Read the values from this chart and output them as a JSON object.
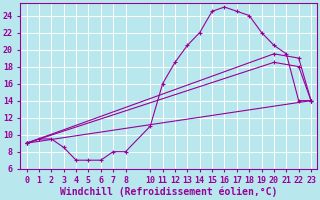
{
  "xlabel": "Windchill (Refroidissement éolien,°C)",
  "background_color": "#b8e8ee",
  "grid_color": "#ffffff",
  "line_color": "#990099",
  "xlim": [
    -0.5,
    23.5
  ],
  "ylim": [
    6,
    25.5
  ],
  "xticks": [
    0,
    1,
    2,
    3,
    4,
    5,
    6,
    7,
    8,
    10,
    11,
    12,
    13,
    14,
    15,
    16,
    17,
    18,
    19,
    20,
    21,
    22,
    23
  ],
  "yticks": [
    6,
    8,
    10,
    12,
    14,
    16,
    18,
    20,
    22,
    24
  ],
  "line1_x": [
    0,
    1,
    2,
    3,
    4,
    5,
    6,
    7,
    8,
    10,
    11,
    12,
    13,
    14,
    15,
    16,
    17,
    18,
    19,
    20,
    21,
    22,
    23
  ],
  "line1_y": [
    9,
    9.5,
    9.5,
    8.5,
    7,
    7,
    7,
    8,
    8,
    11,
    16,
    18.5,
    20.5,
    22,
    24.5,
    25,
    24.5,
    24,
    22,
    20.5,
    19.5,
    14,
    14
  ],
  "line2_x": [
    0,
    20,
    22,
    23
  ],
  "line2_y": [
    9,
    19.5,
    19,
    14
  ],
  "line3_x": [
    0,
    20,
    22,
    23
  ],
  "line3_y": [
    9,
    18.5,
    18,
    14
  ],
  "line4_x": [
    0,
    23
  ],
  "line4_y": [
    9,
    14
  ],
  "font_family": "monospace",
  "tick_fontsize": 6,
  "xlabel_fontsize": 7
}
